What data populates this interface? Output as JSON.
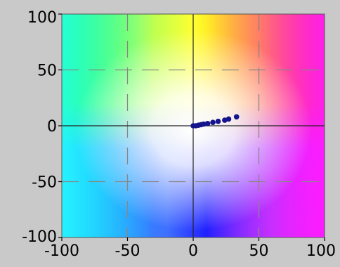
{
  "chart_data": {
    "type": "scatter",
    "title": "",
    "xlabel": "",
    "ylabel": "",
    "xlim": [
      -100,
      100
    ],
    "ylim": [
      -100,
      100
    ],
    "x_ticks": [
      -100,
      -50,
      0,
      50,
      100
    ],
    "y_ticks": [
      -100,
      -50,
      0,
      50,
      100
    ],
    "x_tick_labels": [
      "-100",
      "-50",
      "0",
      "50",
      "100"
    ],
    "y_tick_labels": [
      "-100",
      "-50",
      "0",
      "50",
      "100"
    ],
    "grid": true,
    "grid_style": "dashed",
    "background": "color-wheel gradient (a*/b* plane: green top-left, yellow top, red top-right, magenta right, blue bottom, cyan left, white center)",
    "series": [
      {
        "marker_color": "#14148c",
        "points": [
          {
            "x": 0,
            "y": 0
          },
          {
            "x": 2,
            "y": 0
          },
          {
            "x": 4,
            "y": 0.5
          },
          {
            "x": 6,
            "y": 1
          },
          {
            "x": 8,
            "y": 1.5
          },
          {
            "x": 11,
            "y": 2
          },
          {
            "x": 15,
            "y": 3
          },
          {
            "x": 19,
            "y": 4
          },
          {
            "x": 24,
            "y": 5
          },
          {
            "x": 27,
            "y": 6
          },
          {
            "x": 33,
            "y": 8
          }
        ]
      }
    ]
  }
}
